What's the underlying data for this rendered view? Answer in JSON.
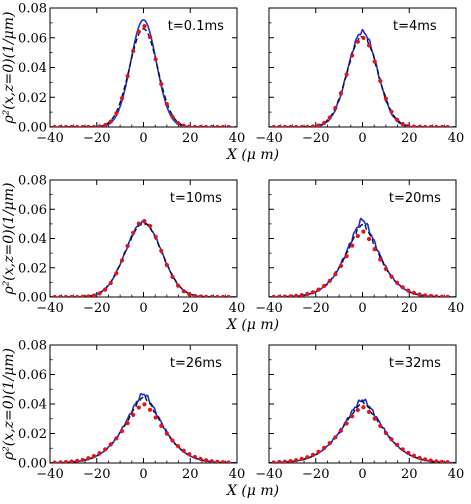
{
  "chart_data": {
    "type": "line",
    "xlabel": "X (μ m)",
    "ylabel": "ρ²(x,z=0)(1/μm)",
    "xlim": [
      -40,
      40
    ],
    "ylim": [
      0,
      0.08
    ],
    "xticks": [
      -40,
      -20,
      0,
      20,
      40
    ],
    "yticks": [
      0.0,
      0.02,
      0.04,
      0.06,
      0.08
    ],
    "ytick_labels": [
      "0.00",
      "0.02",
      "0.04",
      "0.06",
      "0.08"
    ],
    "grid": false,
    "colors": {
      "solid": "#1f2fd6",
      "dashed": "#111111",
      "dots": "#e0141a"
    },
    "panels": [
      {
        "label": "t=0.1ms",
        "series": [
          {
            "style": "solid",
            "peak": 0.072,
            "width": 5.5,
            "noise": 0.0
          },
          {
            "style": "dashed",
            "peak": 0.066,
            "width": 6.0,
            "noise": 0.0
          },
          {
            "style": "dots",
            "peak": 0.068,
            "width": 5.8,
            "noise": 0.0
          }
        ]
      },
      {
        "label": "t=4ms",
        "series": [
          {
            "style": "solid",
            "peak": 0.064,
            "width": 6.3,
            "noise": 0.0015
          },
          {
            "style": "dashed",
            "peak": 0.061,
            "width": 6.6,
            "noise": 0.001
          },
          {
            "style": "dots",
            "peak": 0.06,
            "width": 6.6,
            "noise": 0.0
          }
        ]
      },
      {
        "label": "t=10ms",
        "series": [
          {
            "style": "solid",
            "peak": 0.051,
            "width": 7.8,
            "noise": 0.0012
          },
          {
            "style": "dashed",
            "peak": 0.05,
            "width": 7.9,
            "noise": 0.0008
          },
          {
            "style": "dots",
            "peak": 0.052,
            "width": 7.6,
            "noise": 0.0
          }
        ]
      },
      {
        "label": "t=20ms",
        "series": [
          {
            "style": "solid",
            "peak": 0.053,
            "width": 8.5,
            "noise": 0.0018,
            "cusp": true
          },
          {
            "style": "dashed",
            "peak": 0.05,
            "width": 8.7,
            "noise": 0.0012,
            "cusp": true
          },
          {
            "style": "dots",
            "peak": 0.045,
            "width": 9.2,
            "noise": 0.0,
            "cusp": true
          }
        ]
      },
      {
        "label": "t=26ms",
        "series": [
          {
            "style": "solid",
            "peak": 0.047,
            "width": 9.5,
            "noise": 0.0015,
            "cusp": true
          },
          {
            "style": "dashed",
            "peak": 0.045,
            "width": 9.7,
            "noise": 0.001,
            "cusp": true
          },
          {
            "style": "dots",
            "peak": 0.04,
            "width": 10.5,
            "noise": 0.0,
            "cusp": true
          }
        ]
      },
      {
        "label": "t=32ms",
        "series": [
          {
            "style": "solid",
            "peak": 0.043,
            "width": 10.3,
            "noise": 0.0015,
            "cusp": true
          },
          {
            "style": "dashed",
            "peak": 0.041,
            "width": 10.5,
            "noise": 0.001,
            "cusp": true
          },
          {
            "style": "dots",
            "peak": 0.038,
            "width": 11.3,
            "noise": 0.0,
            "cusp": true
          }
        ]
      }
    ]
  }
}
